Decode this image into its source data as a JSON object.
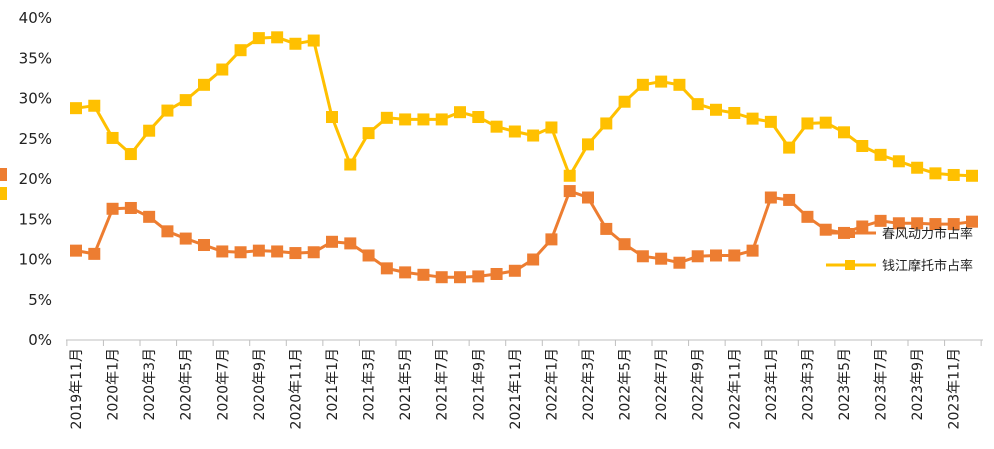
{
  "chart_data": {
    "type": "line",
    "title": "",
    "xlabel": "",
    "ylabel": "",
    "ylim": [
      0,
      40
    ],
    "y_ticks": [
      "0%",
      "5%",
      "10%",
      "15%",
      "20%",
      "25%",
      "30%",
      "35%",
      "40%"
    ],
    "grid": false,
    "legend_position": "right",
    "categories": [
      "2019年11月",
      "2019年12月",
      "2020年1月",
      "2020年2月",
      "2020年3月",
      "2020年4月",
      "2020年5月",
      "2020年6月",
      "2020年7月",
      "2020年8月",
      "2020年9月",
      "2020年10月",
      "2020年11月",
      "2020年12月",
      "2021年1月",
      "2021年2月",
      "2021年3月",
      "2021年4月",
      "2021年5月",
      "2021年6月",
      "2021年7月",
      "2021年8月",
      "2021年9月",
      "2021年10月",
      "2021年11月",
      "2021年12月",
      "2022年1月",
      "2022年2月",
      "2022年3月",
      "2022年4月",
      "2022年5月",
      "2022年6月",
      "2022年7月",
      "2022年8月",
      "2022年9月",
      "2022年10月",
      "2022年11月",
      "2022年12月",
      "2023年1月",
      "2023年2月",
      "2023年3月",
      "2023年4月",
      "2023年5月",
      "2023年6月",
      "2023年7月",
      "2023年8月",
      "2023年9月",
      "2023年10月",
      "2023年11月",
      "2023年12月"
    ],
    "x_tick_labels": [
      "2019年11月",
      "2020年1月",
      "2020年3月",
      "2020年5月",
      "2020年7月",
      "2020年9月",
      "2020年11月",
      "2021年1月",
      "2021年3月",
      "2021年5月",
      "2021年7月",
      "2021年9月",
      "2021年11月",
      "2022年1月",
      "2022年3月",
      "2022年5月",
      "2022年7月",
      "2022年9月",
      "2022年11月",
      "2023年1月",
      "2023年3月",
      "2023年5月",
      "2023年7月",
      "2023年9月",
      "2023年11月"
    ],
    "series": [
      {
        "name": "春风动力市占率",
        "color": "#ED7D31",
        "marker": "square",
        "values": [
          11.1,
          10.7,
          16.3,
          16.4,
          15.3,
          13.5,
          12.6,
          11.8,
          11.0,
          10.9,
          11.1,
          11.0,
          10.8,
          10.9,
          12.2,
          12.0,
          10.5,
          8.9,
          8.4,
          8.1,
          7.8,
          7.8,
          7.9,
          8.2,
          8.6,
          10.0,
          12.5,
          18.5,
          17.7,
          13.8,
          11.9,
          10.4,
          10.1,
          9.6,
          10.4,
          10.5,
          10.5,
          11.1,
          17.7,
          17.4,
          15.3,
          13.7,
          13.3,
          14.1,
          14.8,
          14.5,
          14.5,
          14.4,
          14.4,
          14.7
        ]
      },
      {
        "name": "钱江摩托市占率",
        "color": "#FFC000",
        "marker": "square",
        "values": [
          28.8,
          29.1,
          25.1,
          23.1,
          26.0,
          28.5,
          29.8,
          31.7,
          33.6,
          36.0,
          37.5,
          37.6,
          36.8,
          37.2,
          27.7,
          21.8,
          25.7,
          27.6,
          27.4,
          27.4,
          27.4,
          28.3,
          27.7,
          26.5,
          25.9,
          25.4,
          26.4,
          20.4,
          24.3,
          26.9,
          29.6,
          31.7,
          32.1,
          31.7,
          29.3,
          28.6,
          28.2,
          27.5,
          27.1,
          23.9,
          26.9,
          27.0,
          25.8,
          24.1,
          23.0,
          22.2,
          21.4,
          20.7,
          20.5,
          20.4
        ]
      }
    ]
  }
}
